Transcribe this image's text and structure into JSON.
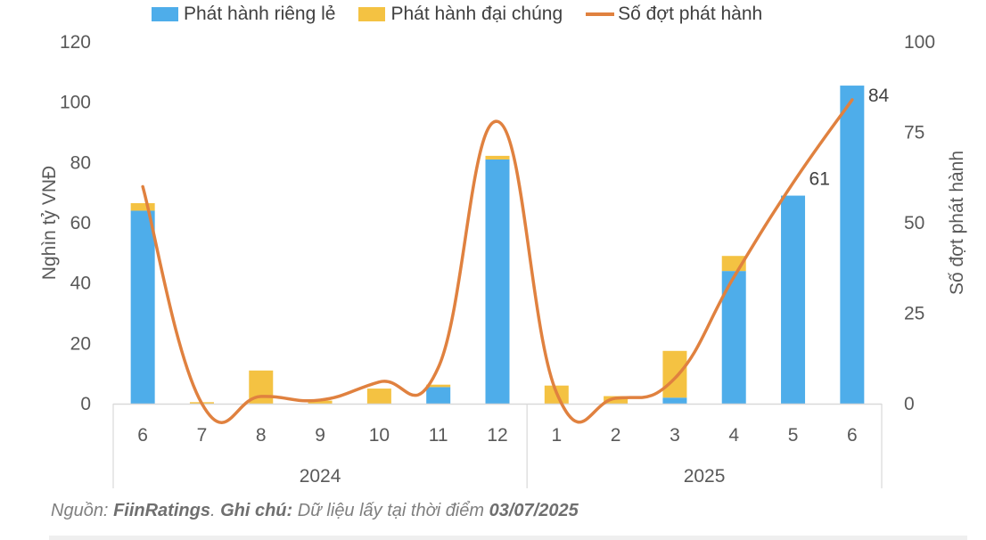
{
  "chart_data": {
    "type": "bar",
    "subtype": "stacked_bar_with_line_secondary_axis",
    "title": "",
    "legend": [
      {
        "name": "Phát hành riêng lẻ",
        "type": "bar",
        "color": "#4EADEA"
      },
      {
        "name": "Phát hành đại chúng",
        "type": "bar",
        "color": "#F4C242"
      },
      {
        "name": "Số đợt phát hành",
        "type": "line",
        "color": "#E0813F"
      }
    ],
    "legend_position": "top",
    "categories": [
      "6",
      "7",
      "8",
      "9",
      "10",
      "11",
      "12",
      "1",
      "2",
      "3",
      "4",
      "5",
      "6"
    ],
    "groups": [
      {
        "label": "2024",
        "start": 0,
        "end": 6
      },
      {
        "label": "2025",
        "start": 7,
        "end": 12
      }
    ],
    "series": [
      {
        "name": "Phát hành riêng lẻ",
        "axis": "left",
        "values": [
          64,
          0,
          0,
          0,
          0,
          5.5,
          81,
          0,
          0,
          2,
          44,
          69,
          105.5
        ]
      },
      {
        "name": "Phát hành đại chúng",
        "axis": "left",
        "values": [
          2.5,
          0.5,
          11,
          1,
          5,
          0.8,
          1.2,
          6,
          2.5,
          15.5,
          5,
          0,
          0
        ]
      },
      {
        "name": "Số đợt phát hành",
        "axis": "right",
        "values": [
          60,
          0,
          2,
          1,
          6,
          10,
          78,
          3,
          1.5,
          7,
          35,
          61,
          84
        ]
      }
    ],
    "data_labels": [
      {
        "series": "Số đợt phát hành",
        "index": 11,
        "text": "61"
      },
      {
        "series": "Số đợt phát hành",
        "index": 12,
        "text": "84"
      }
    ],
    "ylabel": "Nghìn tỷ VNĐ",
    "ylim": [
      0,
      120
    ],
    "yticks": [
      0,
      20,
      40,
      60,
      80,
      100,
      120
    ],
    "y2label": "Số đợt phát hành",
    "y2lim": [
      0,
      100
    ],
    "y2ticks": [
      0,
      25,
      50,
      75,
      100
    ],
    "grid": false
  },
  "footer": {
    "source_label": "Nguồn: ",
    "source_value": "FiinRatings",
    "sep": ". ",
    "note_label": "Ghi chú: ",
    "note_text": "Dữ liệu lấy tại thời điểm ",
    "note_date": "03/07/2025"
  }
}
